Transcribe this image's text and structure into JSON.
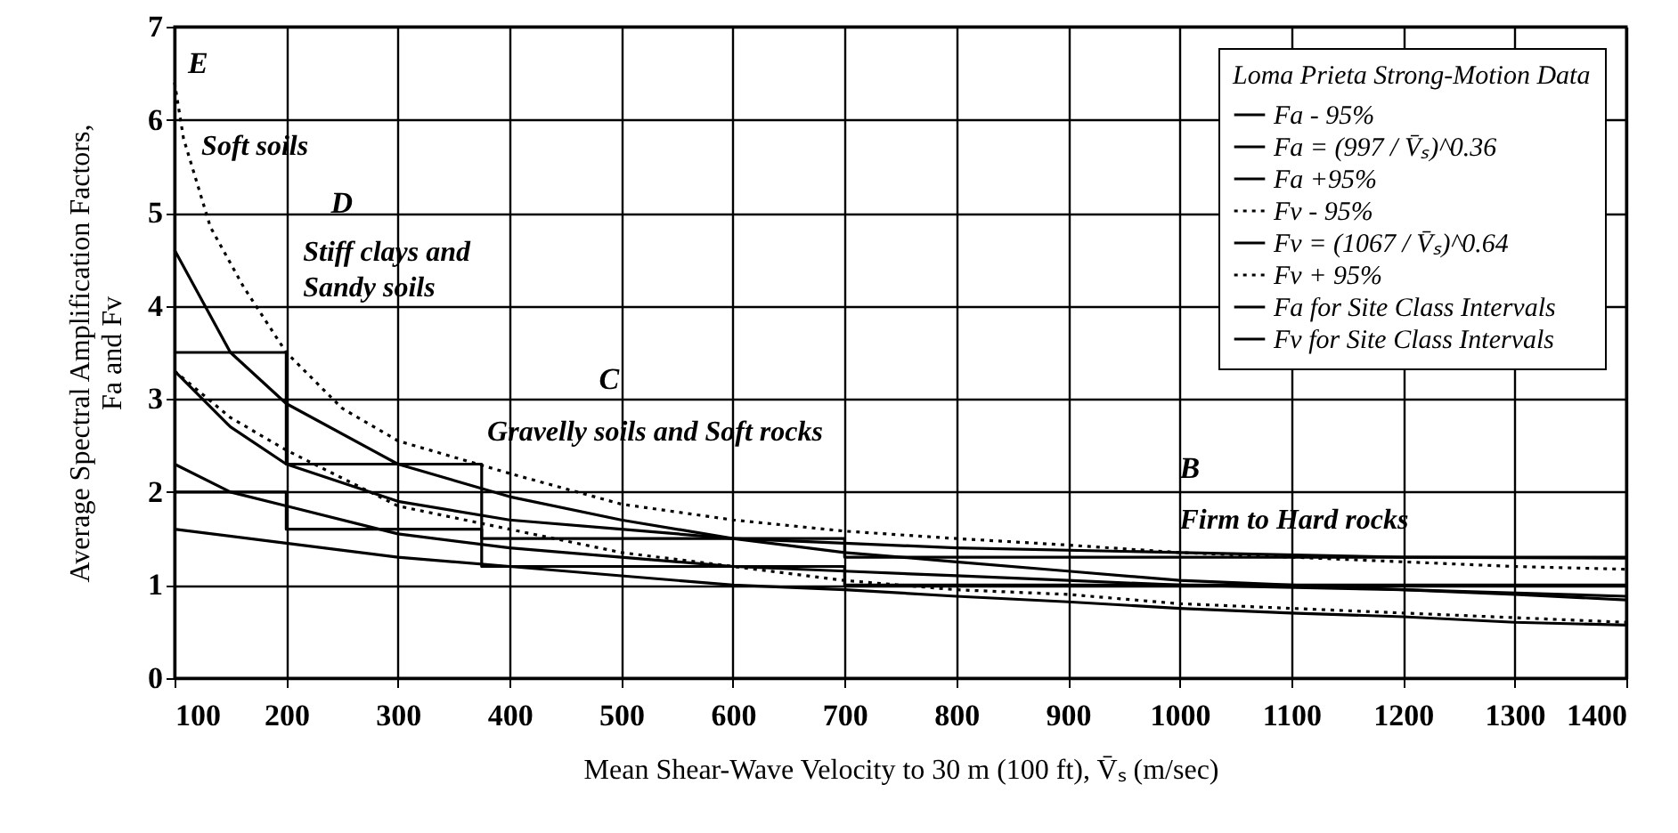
{
  "chart_data": {
    "type": "line",
    "xlabel": "Mean Shear-Wave Velocity to 30 m (100 ft), V̄ₛ (m/sec)",
    "ylabel": "Average Spectral Amplification Factors,\nFa and Fv",
    "legend_title": "Loma Prieta Strong-Motion Data",
    "xlim": [
      100,
      1400
    ],
    "xticks": [
      100,
      200,
      300,
      400,
      500,
      600,
      700,
      800,
      900,
      1000,
      1100,
      1200,
      1300,
      1400
    ],
    "ylim": [
      0,
      7
    ],
    "yticks": [
      0,
      1,
      2,
      3,
      4,
      5,
      6,
      7
    ],
    "grid": true,
    "legend": "top right",
    "marker": "none",
    "series": [
      {
        "name": "Fa - 95%",
        "color": "#000000",
        "line_style": "solid",
        "x": [
          100,
          200,
          300,
          400,
          500,
          600,
          700,
          800,
          900,
          1000,
          1100,
          1200,
          1300,
          1400
        ],
        "values": [
          1.6,
          1.45,
          1.3,
          1.2,
          1.1,
          1.0,
          0.95,
          0.88,
          0.82,
          0.75,
          0.7,
          0.66,
          0.6,
          0.57
        ]
      },
      {
        "name": "Fa = (997 / V̄ₛ)^0.36",
        "color": "#000000",
        "line_style": "solid",
        "x": [
          100,
          150,
          200,
          300,
          400,
          500,
          600,
          700,
          800,
          900,
          1000,
          1200,
          1400
        ],
        "values": [
          2.3,
          2.0,
          1.85,
          1.55,
          1.4,
          1.3,
          1.2,
          1.15,
          1.1,
          1.05,
          1.0,
          0.95,
          0.88
        ]
      },
      {
        "name": "Fa +95%",
        "color": "#000000",
        "line_style": "solid",
        "x": [
          100,
          150,
          200,
          300,
          400,
          500,
          600,
          700,
          800,
          1000,
          1200,
          1400
        ],
        "values": [
          3.3,
          2.7,
          2.3,
          1.9,
          1.7,
          1.6,
          1.5,
          1.45,
          1.4,
          1.35,
          1.3,
          1.29
        ]
      },
      {
        "name": "Fv - 95%",
        "color": "#000000",
        "line_style": "dotted",
        "x": [
          100,
          150,
          200,
          300,
          400,
          500,
          600,
          700,
          800,
          900,
          1000,
          1100,
          1200,
          1300,
          1400
        ],
        "values": [
          3.3,
          2.8,
          2.45,
          1.85,
          1.6,
          1.35,
          1.2,
          1.05,
          0.95,
          0.9,
          0.8,
          0.75,
          0.7,
          0.65,
          0.6
        ]
      },
      {
        "name": "Fv = (1067 / V̄ₛ)^0.64",
        "color": "#000000",
        "line_style": "solid",
        "x": [
          100,
          150,
          200,
          300,
          400,
          500,
          600,
          700,
          800,
          900,
          1000,
          1100,
          1200,
          1300,
          1400
        ],
        "values": [
          4.6,
          3.5,
          2.95,
          2.3,
          1.95,
          1.7,
          1.5,
          1.35,
          1.25,
          1.15,
          1.05,
          1.0,
          0.95,
          0.9,
          0.84
        ]
      },
      {
        "name": "Fv + 95%",
        "color": "#000000",
        "line_style": "dotted",
        "x": [
          100,
          108,
          132,
          162,
          200,
          250,
          300,
          400,
          500,
          600,
          700,
          800,
          900,
          1000,
          1100,
          1200,
          1300,
          1400
        ],
        "values": [
          6.4,
          5.8,
          4.85,
          4.2,
          3.5,
          2.9,
          2.55,
          2.2,
          1.87,
          1.7,
          1.58,
          1.5,
          1.43,
          1.35,
          1.3,
          1.25,
          1.2,
          1.17
        ]
      },
      {
        "name": "Fa for Site Class Intervals",
        "type": "step",
        "color": "#000000",
        "line_style": "solid",
        "x": [
          100,
          200,
          375,
          700,
          1400
        ],
        "values": [
          2.0,
          1.6,
          1.2,
          1.0,
          1.0
        ]
      },
      {
        "name": "Fv for Site Class Intervals",
        "type": "step",
        "color": "#000000",
        "line_style": "solid",
        "x": [
          100,
          200,
          375,
          700,
          1400
        ],
        "values": [
          3.5,
          2.3,
          1.5,
          1.3,
          1.3
        ]
      }
    ],
    "annotations": [
      "E",
      "Soft soils",
      "D",
      "Stiff clays and\nSandy soils",
      "C",
      "Gravelly soils and Soft rocks",
      "B",
      "Firm to Hard rocks"
    ]
  }
}
